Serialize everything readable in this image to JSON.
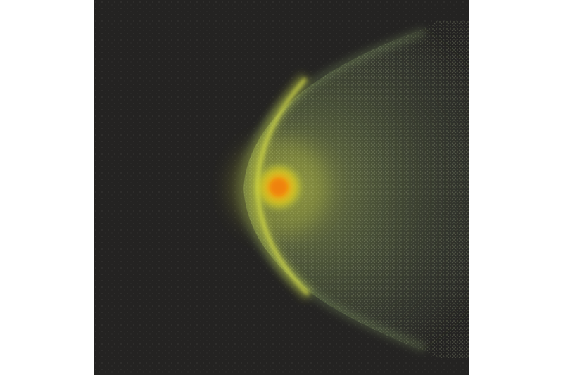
{
  "image": {
    "subject": "",
    "colors": {
      "page_background": "#ffffff",
      "sky_background": "#242322",
      "core": "#f0920a",
      "coma": "#e8d21a",
      "shock_front": "#d6e04a",
      "haze": "#7f9a5e",
      "speckle": "#5c5a57"
    }
  }
}
